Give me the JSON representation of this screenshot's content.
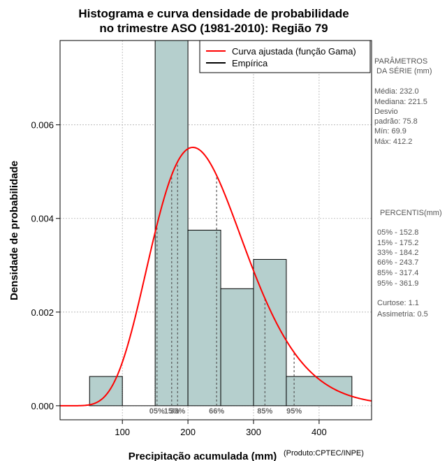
{
  "chart_data": {
    "type": "histogram",
    "title_lines": [
      "Histograma e curva densidade de probabilidade",
      "no trimestre ASO (1981-2010): Região 79"
    ],
    "xlabel": "Precipitação acumulada (mm)",
    "ylabel": "Densidade de probabilidade",
    "credit": "(Produto:CPTEC/INPE)",
    "xlim": [
      5,
      480
    ],
    "ylim": [
      -0.0003,
      0.0078
    ],
    "x_ticks": [
      100,
      200,
      300,
      400
    ],
    "x_tick_labels": [
      "100",
      "200",
      "300",
      "400"
    ],
    "y_ticks": [
      0.0,
      0.002,
      0.004,
      0.006
    ],
    "y_tick_labels": [
      "0.000",
      "0.002",
      "0.004",
      "0.006"
    ],
    "grid": true,
    "bar_color": "#b5cfcd",
    "curve_color": "#ff0000",
    "bins": [
      {
        "x0": 50,
        "x1": 100,
        "density": 0.000625
      },
      {
        "x0": 100,
        "x1": 150,
        "density": 0.0
      },
      {
        "x0": 150,
        "x1": 200,
        "density": 0.0078
      },
      {
        "x0": 200,
        "x1": 250,
        "density": 0.00375
      },
      {
        "x0": 250,
        "x1": 300,
        "density": 0.0025
      },
      {
        "x0": 300,
        "x1": 350,
        "density": 0.003125
      },
      {
        "x0": 350,
        "x1": 450,
        "density": 0.000625
      }
    ],
    "gamma_fit": {
      "shape": 9.4,
      "scale": 24.7,
      "x_range": [
        5,
        480
      ]
    },
    "legend": [
      {
        "label": "Curva ajustada (função Gama)",
        "color": "#ff0000"
      },
      {
        "label": "Empírica",
        "color": "#000000"
      }
    ],
    "percentile_marks": [
      {
        "label": "05%",
        "value": 152.8
      },
      {
        "label": "15%",
        "value": 175.2
      },
      {
        "label": "33%",
        "value": 184.2
      },
      {
        "label": "66%",
        "value": 243.7
      },
      {
        "label": "85%",
        "value": 317.4
      },
      {
        "label": "95%",
        "value": 361.9
      }
    ]
  },
  "side_panel": {
    "params_lines": [
      "PARÂMETROS",
      " DA SÉRIE (mm)"
    ],
    "stats_lines": [
      "Média:  232.0",
      "Mediana:  221.5",
      "Desvio",
      "padrão:  75.8",
      "Mín:  69.9",
      "Máx:  412.2"
    ],
    "percentis_title": "PERCENTIS(mm)",
    "percentis_lines": [
      "05% -  152.8",
      "15% -  175.2",
      "33% -  184.2",
      "66% -  243.7",
      "85% -  317.4",
      "95% -  361.9"
    ],
    "shape_lines": [
      "Curtose:  1.1",
      "Assimetria:  0.5"
    ]
  }
}
